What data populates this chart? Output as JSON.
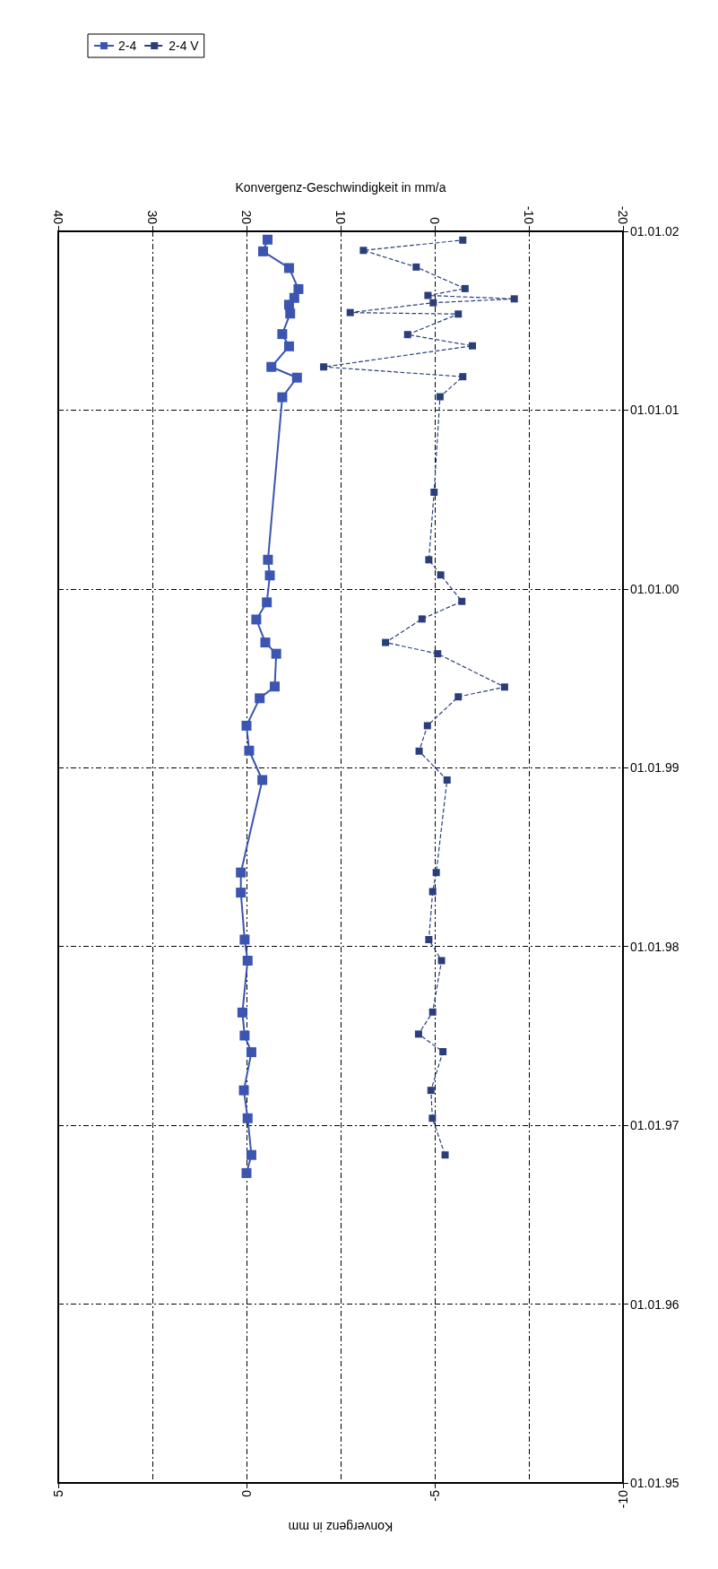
{
  "chart_data": {
    "type": "line",
    "orientation": "horizontal",
    "xlabel": "Konvergenz in mm",
    "x2label": "Konvergenz-Geschwindigkeit in mm/a",
    "xlim": [
      5,
      -10
    ],
    "xticks": [
      5,
      0,
      -5,
      -10
    ],
    "x2lim": [
      40,
      -20
    ],
    "x2ticks": [
      40,
      30,
      20,
      10,
      0,
      -10,
      -20
    ],
    "ylim": [
      "1995-01-01",
      "2002-01-01"
    ],
    "yticks": [
      {
        "value": "1995-01-01",
        "label": "01.01.95"
      },
      {
        "value": "1996-01-01",
        "label": "01.01.96"
      },
      {
        "value": "1997-01-01",
        "label": "01.01.97"
      },
      {
        "value": "1998-01-01",
        "label": "01.01.98"
      },
      {
        "value": "1999-01-01",
        "label": "01.01.99"
      },
      {
        "value": "2000-01-01",
        "label": "01.01.00"
      },
      {
        "value": "2001-01-01",
        "label": "01.01.01"
      },
      {
        "value": "2002-01-01",
        "label": "01.01.02"
      }
    ],
    "grid": true,
    "legend": "top left",
    "marker": "square",
    "series": [
      {
        "name": "2-4",
        "color": "#3b55b0",
        "line_style": "solid",
        "x": [
          "1996-09-25",
          "1996-11-01",
          "1997-01-15",
          "1997-03-13",
          "1997-05-30",
          "1997-07-03",
          "1997-08-19",
          "1997-12-03",
          "1998-01-15",
          "1998-04-21",
          "1998-06-01",
          "1998-12-07",
          "1999-02-05",
          "1999-03-28",
          "1999-05-23",
          "1999-06-16",
          "1999-08-22",
          "1999-09-14",
          "1999-10-31",
          "1999-12-05",
          "2000-01-29",
          "2000-03-01",
          "2001-01-27",
          "2001-03-08",
          "2001-03-30",
          "2001-05-11",
          "2001-06-05",
          "2001-07-17",
          "2001-08-04",
          "2001-08-18",
          "2001-09-05",
          "2001-10-18",
          "2001-11-21",
          "2001-12-15"
        ],
        "values": [
          0.0,
          -0.13,
          -0.03,
          0.07,
          -0.13,
          0.05,
          0.11,
          -0.03,
          0.05,
          0.15,
          0.15,
          -0.42,
          -0.07,
          0.0,
          -0.35,
          -0.75,
          -0.79,
          -0.5,
          -0.26,
          -0.54,
          -0.62,
          -0.57,
          -0.95,
          -1.34,
          -0.66,
          -1.13,
          -0.95,
          -1.16,
          -1.13,
          -1.27,
          -1.38,
          -1.13,
          -0.44,
          -0.56
        ]
      },
      {
        "name": "2-4 V",
        "color": "#2a3f7a",
        "line_style": "dashed",
        "axis": "x2",
        "x": [
          "1996-11-01",
          "1997-01-15",
          "1997-03-13",
          "1997-05-31",
          "1997-07-06",
          "1997-08-20",
          "1997-12-03",
          "1998-01-15",
          "1998-04-23",
          "1998-06-01",
          "1998-12-07",
          "1999-02-04",
          "1999-03-28",
          "1999-05-26",
          "1999-06-15",
          "1999-08-22",
          "1999-09-14",
          "1999-11-01",
          "1999-12-07",
          "2000-01-30",
          "2000-03-01",
          "2000-07-17",
          "2001-01-28",
          "2001-03-10",
          "2001-03-30",
          "2001-05-12",
          "2001-06-04",
          "2001-07-16",
          "2001-07-19",
          "2001-08-08",
          "2001-08-16",
          "2001-08-23",
          "2001-09-06",
          "2001-10-20",
          "2001-11-23",
          "2001-12-14"
        ],
        "values": [
          -1.1,
          0.25,
          0.4,
          -0.87,
          1.72,
          0.22,
          -0.72,
          0.63,
          0.22,
          -0.16,
          -1.31,
          1.66,
          0.78,
          -2.5,
          -7.42,
          -0.31,
          5.23,
          1.35,
          -2.88,
          -0.63,
          0.63,
          0.07,
          -0.56,
          -2.98,
          11.8,
          -4.0,
          2.88,
          -2.5,
          8.98,
          0.16,
          -8.45,
          0.72,
          -3.22,
          1.97,
          7.58,
          -2.98
        ]
      }
    ]
  }
}
